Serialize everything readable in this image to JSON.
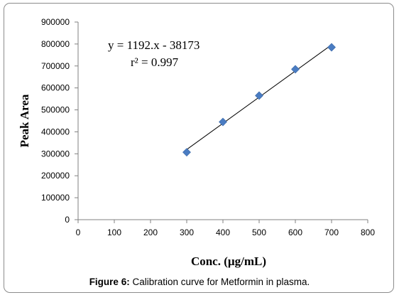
{
  "chart_data": {
    "type": "scatter",
    "xlabel": "Conc. (µg/mL)",
    "ylabel": "Peak Area",
    "xlim": [
      0,
      800
    ],
    "ylim": [
      0,
      900000
    ],
    "x_ticks": [
      "0",
      "100",
      "200",
      "300",
      "400",
      "500",
      "600",
      "700",
      "800"
    ],
    "y_ticks": [
      "0",
      "100000",
      "200000",
      "300000",
      "400000",
      "500000",
      "600000",
      "700000",
      "800000",
      "900000"
    ],
    "grid": false,
    "legend": "none",
    "marker_color": "#4a7cc2",
    "line_color": "#000000",
    "series": [
      {
        "x": [
          300,
          400,
          500,
          600,
          700
        ],
        "y": [
          307000,
          445000,
          565000,
          685000,
          785000
        ]
      }
    ],
    "trendline": {
      "slope": 1192,
      "intercept": -38173,
      "equation": "y = 1192.x - 38173",
      "r2_label": "r² = 0.997"
    }
  },
  "caption": {
    "label": "Figure 6:",
    "text": " Calibration curve for Metformin in plasma."
  }
}
